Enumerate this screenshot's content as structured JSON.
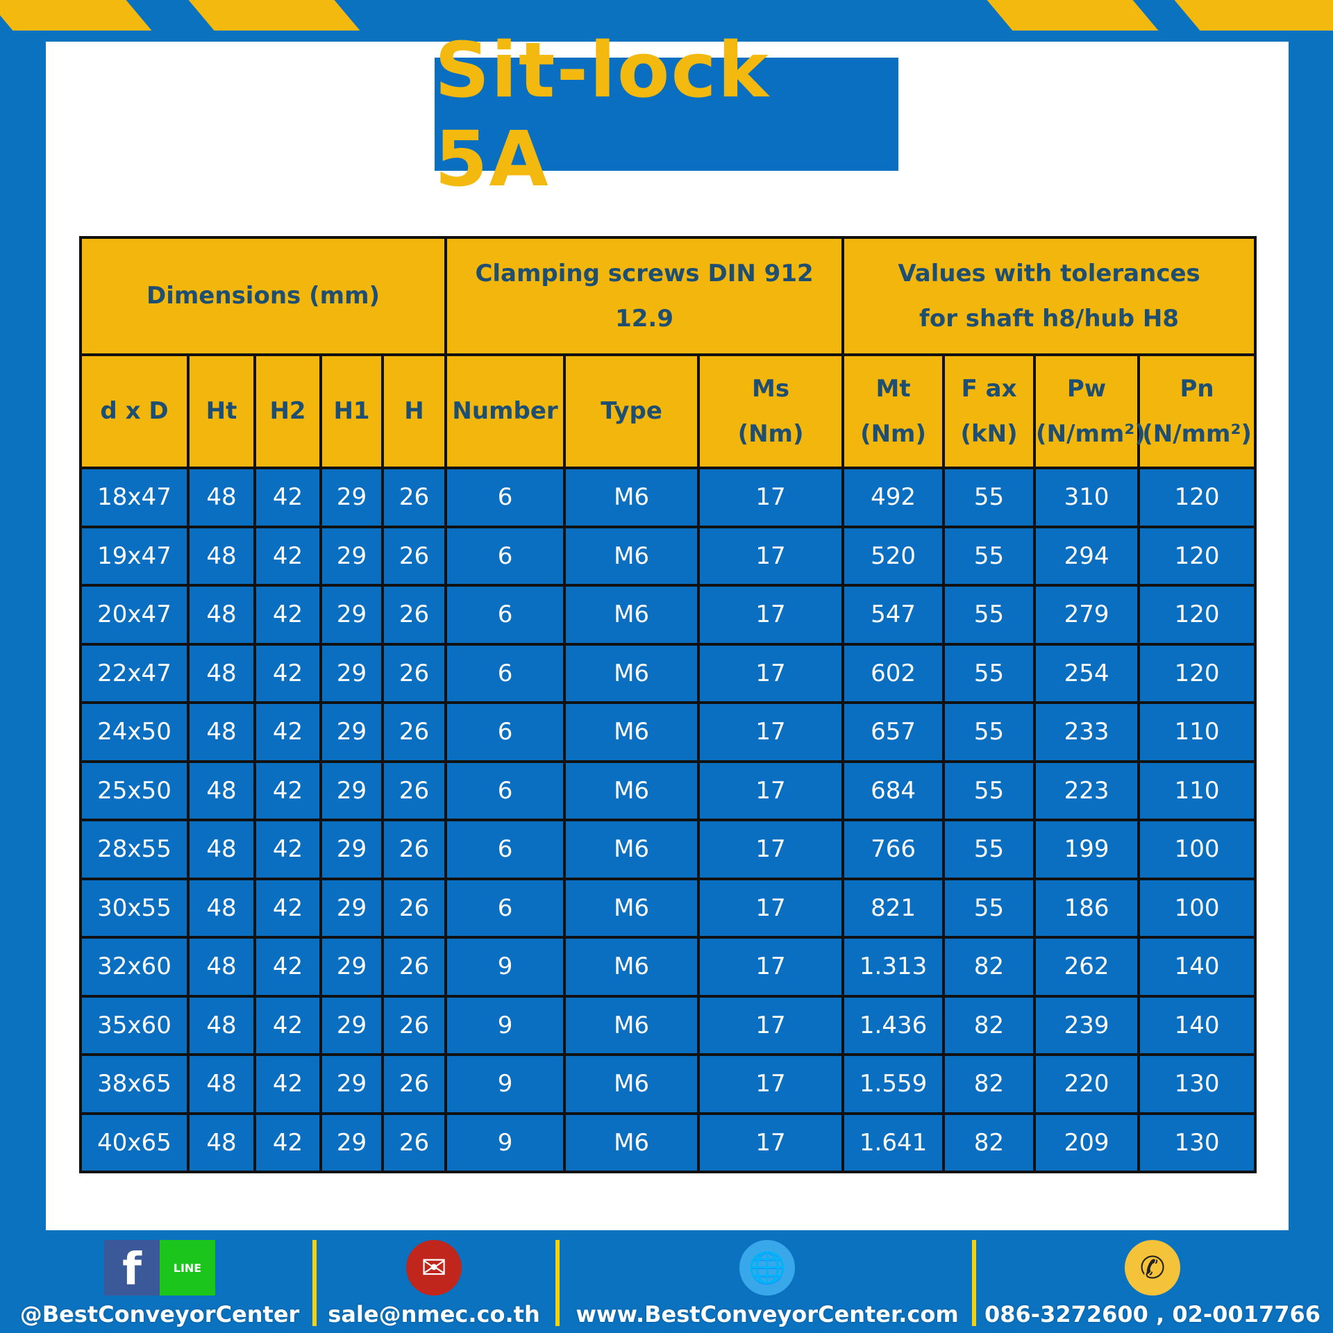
{
  "title": "Sit-lock 5A",
  "colors": {
    "blue": "#0a6fc0",
    "yellow": "#f2b60c",
    "header_text": "#1e4f72"
  },
  "groups": [
    "Dimensions (mm)",
    "Clamping screws DIN 912 12.9",
    "Values with tolerances",
    "for shaft h8/hub H8"
  ],
  "columns": [
    {
      "label": "d x D",
      "unit": ""
    },
    {
      "label": "Ht",
      "unit": ""
    },
    {
      "label": "H2",
      "unit": ""
    },
    {
      "label": "H1",
      "unit": ""
    },
    {
      "label": "H",
      "unit": ""
    },
    {
      "label": "Number",
      "unit": ""
    },
    {
      "label": "Type",
      "unit": ""
    },
    {
      "label": "Ms",
      "unit": "(Nm)"
    },
    {
      "label": "Mt",
      "unit": "(Nm)"
    },
    {
      "label": "F ax",
      "unit": "(kN)"
    },
    {
      "label": "Pw",
      "unit": "(N/mm²)"
    },
    {
      "label": "Pn",
      "unit": "(N/mm²)"
    }
  ],
  "rows": [
    [
      "18x47",
      "48",
      "42",
      "29",
      "26",
      "6",
      "M6",
      "17",
      "492",
      "55",
      "310",
      "120"
    ],
    [
      "19x47",
      "48",
      "42",
      "29",
      "26",
      "6",
      "M6",
      "17",
      "520",
      "55",
      "294",
      "120"
    ],
    [
      "20x47",
      "48",
      "42",
      "29",
      "26",
      "6",
      "M6",
      "17",
      "547",
      "55",
      "279",
      "120"
    ],
    [
      "22x47",
      "48",
      "42",
      "29",
      "26",
      "6",
      "M6",
      "17",
      "602",
      "55",
      "254",
      "120"
    ],
    [
      "24x50",
      "48",
      "42",
      "29",
      "26",
      "6",
      "M6",
      "17",
      "657",
      "55",
      "233",
      "110"
    ],
    [
      "25x50",
      "48",
      "42",
      "29",
      "26",
      "6",
      "M6",
      "17",
      "684",
      "55",
      "223",
      "110"
    ],
    [
      "28x55",
      "48",
      "42",
      "29",
      "26",
      "6",
      "M6",
      "17",
      "766",
      "55",
      "199",
      "100"
    ],
    [
      "30x55",
      "48",
      "42",
      "29",
      "26",
      "6",
      "M6",
      "17",
      "821",
      "55",
      "186",
      "100"
    ],
    [
      "32x60",
      "48",
      "42",
      "29",
      "26",
      "9",
      "M6",
      "17",
      "1.313",
      "82",
      "262",
      "140"
    ],
    [
      "35x60",
      "48",
      "42",
      "29",
      "26",
      "9",
      "M6",
      "17",
      "1.436",
      "82",
      "239",
      "140"
    ],
    [
      "38x65",
      "48",
      "42",
      "29",
      "26",
      "9",
      "M6",
      "17",
      "1.559",
      "82",
      "220",
      "130"
    ],
    [
      "40x65",
      "48",
      "42",
      "29",
      "26",
      "9",
      "M6",
      "17",
      "1.641",
      "82",
      "209",
      "130"
    ]
  ],
  "footer": {
    "social": "@BestConveyorCenter",
    "facebook_icon": "f",
    "line_icon": "LINE",
    "email": "sale@nmec.co.th",
    "website": "www.BestConveyorCenter.com",
    "phone": "086-3272600 , 02-0017766"
  }
}
